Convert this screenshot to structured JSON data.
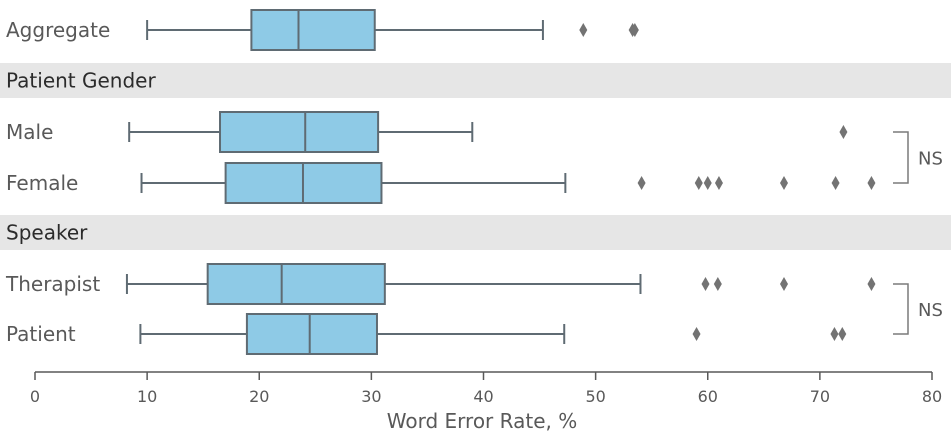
{
  "chart_data": {
    "type": "box",
    "orientation": "horizontal",
    "xlabel": "Word Error Rate, %",
    "xlim": [
      0,
      80
    ],
    "xticks": [
      0,
      10,
      20,
      30,
      40,
      50,
      60,
      70,
      80
    ],
    "colors": {
      "box_fill": "#8ecae6",
      "box_stroke": "#5f6b73",
      "section_band": "#e6e6e6",
      "outlier": "#737373"
    },
    "sections": [
      {
        "title": "",
        "rows": [
          {
            "label": "Aggregate",
            "whisker_low": 10,
            "q1": 19.3,
            "median": 23.5,
            "q3": 30.3,
            "whisker_high": 45.3,
            "outliers": [
              48.9,
              53.3,
              53.5
            ]
          }
        ]
      },
      {
        "title": "Patient Gender",
        "rows": [
          {
            "label": "Male",
            "whisker_low": 8.4,
            "q1": 16.5,
            "median": 24.1,
            "q3": 30.6,
            "whisker_high": 39,
            "outliers": [
              72.1
            ]
          },
          {
            "label": "Female",
            "whisker_low": 9.5,
            "q1": 17,
            "median": 23.9,
            "q3": 30.9,
            "whisker_high": 47.3,
            "outliers": [
              54.1,
              59.2,
              60,
              61,
              66.8,
              71.4,
              74.6
            ]
          }
        ],
        "bracket": "NS"
      },
      {
        "title": "Speaker",
        "rows": [
          {
            "label": "Therapist",
            "whisker_low": 8.2,
            "q1": 15.4,
            "median": 22,
            "q3": 31.2,
            "whisker_high": 54,
            "outliers": [
              59.8,
              60.9,
              66.8,
              74.6
            ]
          },
          {
            "label": "Patient",
            "whisker_low": 9.4,
            "q1": 18.9,
            "median": 24.5,
            "q3": 30.5,
            "whisker_high": 47.2,
            "outliers": [
              59,
              71.3,
              72
            ]
          }
        ],
        "bracket": "NS"
      }
    ]
  }
}
